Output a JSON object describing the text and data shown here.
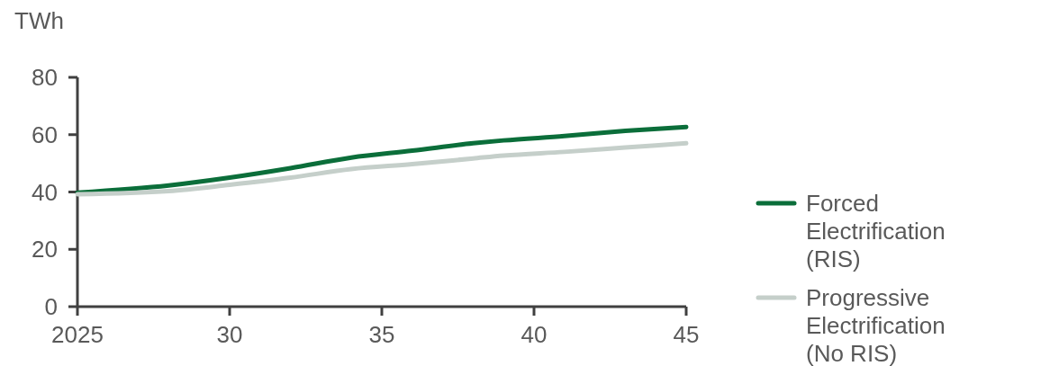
{
  "chart_data": {
    "type": "line",
    "ylabel": "TWh",
    "x": [
      2025,
      2028,
      2030,
      2032,
      2034,
      2036,
      2038,
      2039,
      2041,
      2043,
      2045
    ],
    "xlim": [
      2025,
      2045
    ],
    "xticks": [
      {
        "value": 2025,
        "label": "2025"
      },
      {
        "value": 2030,
        "label": "30"
      },
      {
        "value": 2035,
        "label": "35"
      },
      {
        "value": 2040,
        "label": "40"
      },
      {
        "value": 2045,
        "label": "45"
      }
    ],
    "ylim": [
      0,
      80
    ],
    "yticks": [
      0,
      20,
      40,
      60,
      80
    ],
    "grid": false,
    "legend": "right",
    "line_style": "solid",
    "marker": "none",
    "series": [
      {
        "name": "Forced Electrification (RIS)",
        "color": "#0b6e3a",
        "values": [
          39.8,
          42.3,
          45,
          48.3,
          52,
          54.4,
          57,
          58,
          59.5,
          61.3,
          62.7
        ]
      },
      {
        "name": "Progressive Electrification (No RIS)",
        "color": "#c5cfca",
        "values": [
          39.2,
          40.3,
          42.5,
          45,
          48,
          49.7,
          51.7,
          52.7,
          54,
          55.5,
          57
        ]
      }
    ]
  }
}
